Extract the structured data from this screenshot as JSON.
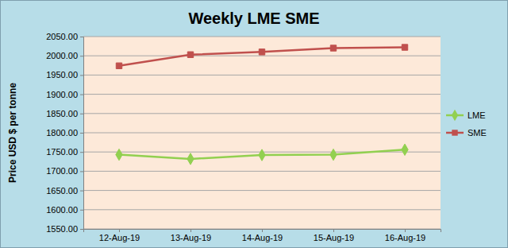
{
  "chart_data": {
    "type": "line",
    "title": "Weekly LME SME",
    "y_label": "Price USD $ per tonne",
    "categories": [
      "12-Aug-19",
      "13-Aug-19",
      "14-Aug-19",
      "15-Aug-19",
      "16-Aug-19"
    ],
    "series": [
      {
        "name": "LME",
        "color": "#92d050",
        "marker": "diamond",
        "values": [
          1743,
          1732,
          1742,
          1743,
          1756
        ]
      },
      {
        "name": "SME",
        "color": "#c0504d",
        "marker": "square",
        "values": [
          1974,
          2003,
          2010,
          2020,
          2022
        ]
      }
    ],
    "ylim": [
      1550,
      2050
    ],
    "yticks": [
      {
        "value": 1550,
        "label": "1550.00"
      },
      {
        "value": 1600,
        "label": "1600.00"
      },
      {
        "value": 1650,
        "label": "1650.00"
      },
      {
        "value": 1700,
        "label": "1700.00"
      },
      {
        "value": 1750,
        "label": "1750.00"
      },
      {
        "value": 1800,
        "label": "1800.00"
      },
      {
        "value": 1850,
        "label": "1850.00"
      },
      {
        "value": 1900,
        "label": "1900.00"
      },
      {
        "value": 1950,
        "label": "1950.00"
      },
      {
        "value": 2000,
        "label": "2000.00"
      },
      {
        "value": 2050,
        "label": "2050.00"
      }
    ],
    "grid": true,
    "legend": "right"
  }
}
